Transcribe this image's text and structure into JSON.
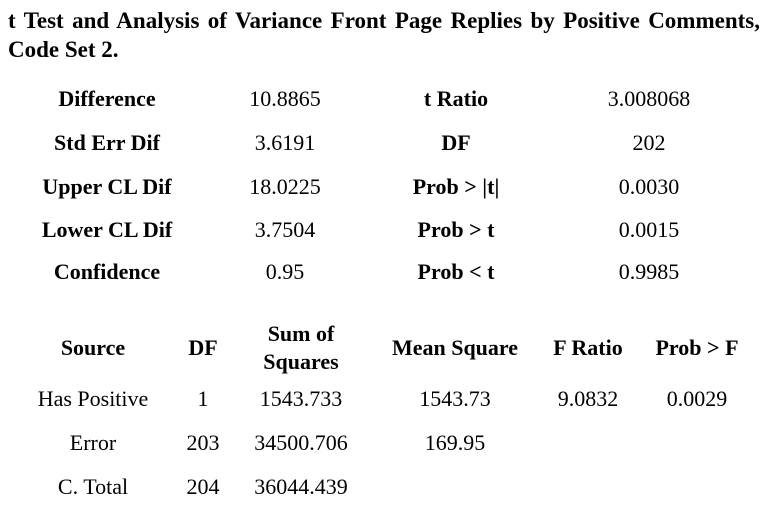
{
  "caption": "t Test and Analysis of Variance Front Page Replies by Positive Comments, Code Set 2.",
  "ttest": {
    "rows": [
      {
        "label": "Difference",
        "value": "10.8865",
        "label2": "t Ratio",
        "value2": "3.008068"
      },
      {
        "label": "Std Err Dif",
        "value": "3.6191",
        "label2": "DF",
        "value2": "202"
      },
      {
        "label": "Upper CL Dif",
        "value": "18.0225",
        "label2": "Prob > |t|",
        "value2": "0.0030"
      },
      {
        "label": "Lower CL Dif",
        "value": "3.7504",
        "label2": "Prob > t",
        "value2": "0.0015"
      },
      {
        "label": "Confidence",
        "value": "0.95",
        "label2": "Prob < t",
        "value2": "0.9985"
      }
    ]
  },
  "anova": {
    "headers": {
      "source": "Source",
      "df": "DF",
      "ss_line1": "Sum of",
      "ss_line2": "Squares",
      "ms": "Mean Square",
      "f": "F Ratio",
      "p": "Prob > F"
    },
    "rows": [
      {
        "source": "Has Positive",
        "df": "1",
        "ss": "1543.733",
        "ms": "1543.73",
        "f": "9.0832",
        "p": "0.0029"
      },
      {
        "source": "Error",
        "df": "203",
        "ss": "34500.706",
        "ms": "169.95",
        "f": "",
        "p": ""
      },
      {
        "source": "C. Total",
        "df": "204",
        "ss": "36044.439",
        "ms": "",
        "f": "",
        "p": ""
      }
    ]
  }
}
